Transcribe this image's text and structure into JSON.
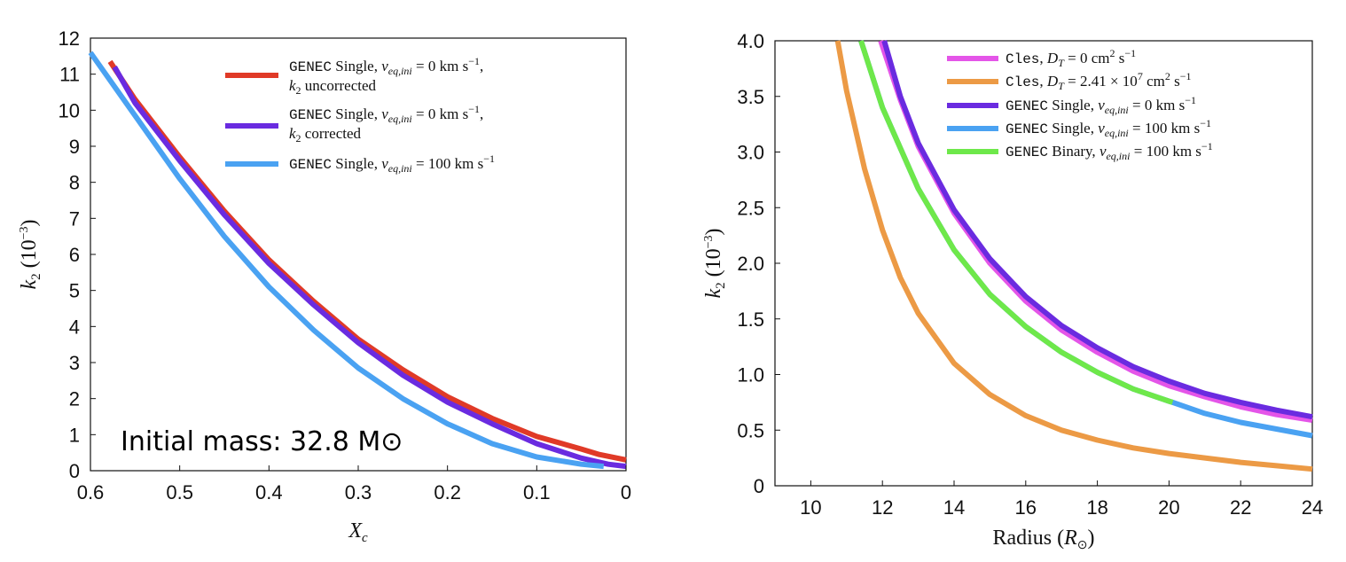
{
  "chart_data": [
    {
      "type": "line",
      "xlabel": "X_c",
      "ylabel": "k_2 (10^-3)",
      "xlim": [
        0.6,
        0.0
      ],
      "x_reversed": true,
      "ylim": [
        0,
        12
      ],
      "xticks": [
        "0.6",
        "0.5",
        "0.4",
        "0.3",
        "0.2",
        "0.1",
        "0"
      ],
      "yticks": [
        "0",
        "1",
        "2",
        "3",
        "4",
        "5",
        "6",
        "7",
        "8",
        "9",
        "10",
        "11",
        "12"
      ],
      "grid": false,
      "legend_position": "top-right",
      "annotation": "Initial mass: 32.8 M⊙",
      "series": [
        {
          "name": "GENEC Single, v_eq,ini = 0 km s^-1, k_2 uncorrected",
          "color": "#e03a27",
          "x": [
            0.578,
            0.55,
            0.5,
            0.45,
            0.4,
            0.35,
            0.3,
            0.25,
            0.2,
            0.15,
            0.1,
            0.05,
            0.03,
            0.0
          ],
          "y": [
            11.35,
            10.3,
            8.7,
            7.2,
            5.85,
            4.7,
            3.65,
            2.8,
            2.05,
            1.45,
            0.95,
            0.6,
            0.45,
            0.3
          ]
        },
        {
          "name": "GENEC Single, v_eq,ini = 0 km s^-1, k_2 corrected",
          "color": "#6a2be0",
          "x": [
            0.573,
            0.55,
            0.5,
            0.45,
            0.4,
            0.35,
            0.3,
            0.25,
            0.2,
            0.15,
            0.1,
            0.05,
            0.02,
            0.0
          ],
          "y": [
            11.2,
            10.2,
            8.6,
            7.1,
            5.75,
            4.6,
            3.55,
            2.65,
            1.9,
            1.3,
            0.75,
            0.35,
            0.18,
            0.12
          ]
        },
        {
          "name": "GENEC Single, v_eq,ini = 100 km s^-1",
          "color": "#4aa2f2",
          "x": [
            0.6,
            0.55,
            0.5,
            0.45,
            0.4,
            0.35,
            0.3,
            0.25,
            0.2,
            0.15,
            0.1,
            0.05,
            0.025
          ],
          "y": [
            11.6,
            9.85,
            8.1,
            6.5,
            5.1,
            3.9,
            2.85,
            2.0,
            1.3,
            0.75,
            0.38,
            0.18,
            0.12
          ]
        }
      ]
    },
    {
      "type": "line",
      "xlabel": "Radius (R⊙)",
      "ylabel": "k_2 (10^-3)",
      "xlim": [
        9,
        24
      ],
      "ylim": [
        0,
        4
      ],
      "xticks": [
        "10",
        "12",
        "14",
        "16",
        "18",
        "20",
        "22",
        "24"
      ],
      "yticks": [
        "0",
        "0.5",
        "1.0",
        "1.5",
        "2.0",
        "2.5",
        "3.0",
        "3.5",
        "4.0"
      ],
      "grid": false,
      "legend_position": "top-right",
      "series": [
        {
          "name": "Cles, D_T = 0 cm^2 s^-1",
          "color": "#e455e8",
          "x": [
            11.95,
            12.5,
            13,
            14,
            15,
            16,
            17,
            18,
            19,
            20,
            21,
            22,
            23,
            24
          ],
          "y": [
            4.0,
            3.47,
            3.05,
            2.45,
            2.0,
            1.66,
            1.4,
            1.2,
            1.03,
            0.9,
            0.8,
            0.71,
            0.64,
            0.59
          ]
        },
        {
          "name": "Cles, D_T = 2.41 × 10^7 cm^2 s^-1",
          "color": "#ec9a45",
          "x": [
            10.75,
            11,
            11.5,
            12,
            12.5,
            13,
            14,
            15,
            16,
            17,
            18,
            19,
            20,
            21,
            22,
            23,
            24
          ],
          "y": [
            4.0,
            3.55,
            2.85,
            2.3,
            1.87,
            1.55,
            1.1,
            0.82,
            0.63,
            0.5,
            0.41,
            0.34,
            0.29,
            0.25,
            0.21,
            0.18,
            0.15
          ]
        },
        {
          "name": "GENEC Single, v_eq,ini = 0 km s^-1",
          "color": "#6a2be0",
          "x": [
            12.05,
            12.5,
            13,
            14,
            15,
            16,
            17,
            18,
            19,
            20,
            21,
            22,
            23,
            24
          ],
          "y": [
            4.0,
            3.5,
            3.08,
            2.48,
            2.04,
            1.7,
            1.44,
            1.24,
            1.07,
            0.94,
            0.83,
            0.75,
            0.68,
            0.62
          ]
        },
        {
          "name": "GENEC Single, v_eq,ini = 100 km s^-1",
          "color": "#4aa2f2",
          "x": [
            11.4,
            12,
            13,
            14,
            15,
            16,
            17,
            18,
            19,
            20,
            20.1,
            21,
            22,
            23,
            24
          ],
          "y": [
            4.0,
            3.4,
            2.67,
            2.12,
            1.72,
            1.43,
            1.2,
            1.02,
            0.87,
            0.76,
            0.75,
            0.65,
            0.57,
            0.51,
            0.45
          ]
        },
        {
          "name": "GENEC Binary, v_eq,ini = 100 km s^-1",
          "color": "#6ee84a",
          "x": [
            11.4,
            12,
            13,
            14,
            15,
            16,
            17,
            18,
            19,
            20,
            20.1
          ],
          "y": [
            4.0,
            3.4,
            2.67,
            2.12,
            1.72,
            1.43,
            1.2,
            1.02,
            0.87,
            0.76,
            0.75
          ]
        }
      ]
    }
  ]
}
